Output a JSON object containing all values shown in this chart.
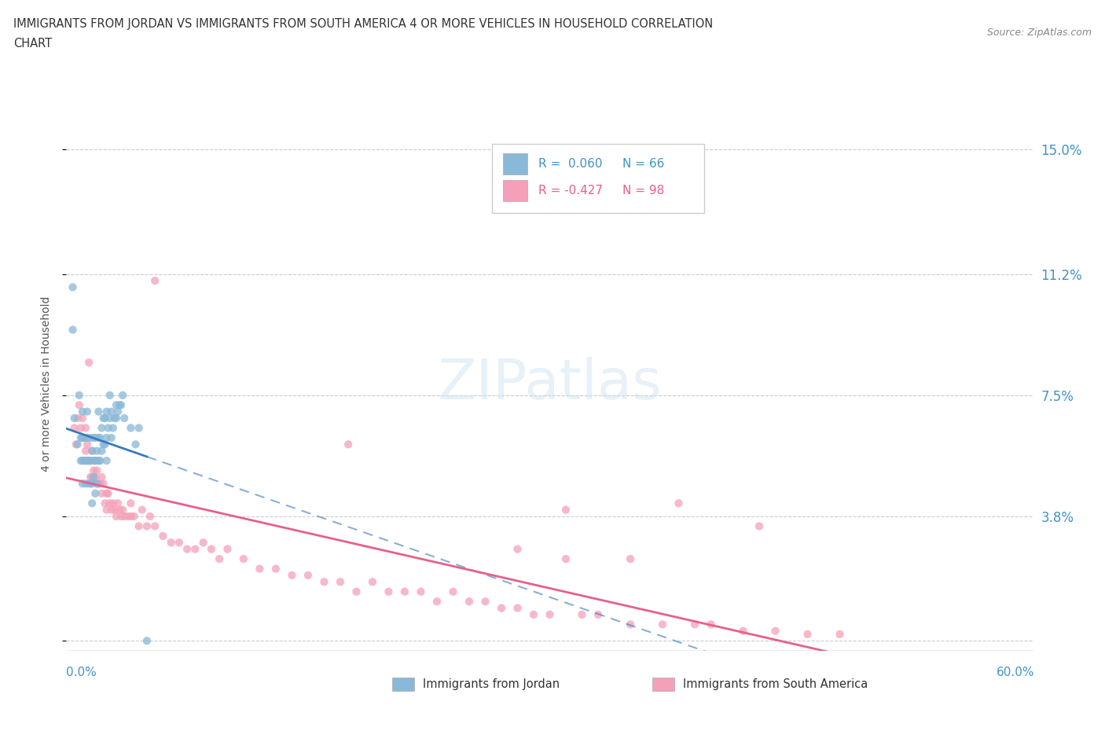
{
  "title_line1": "IMMIGRANTS FROM JORDAN VS IMMIGRANTS FROM SOUTH AMERICA 4 OR MORE VEHICLES IN HOUSEHOLD CORRELATION",
  "title_line2": "CHART",
  "source": "Source: ZipAtlas.com",
  "jordan_R": 0.06,
  "jordan_N": 66,
  "sa_R": -0.427,
  "sa_N": 98,
  "xlim": [
    0.0,
    0.6
  ],
  "ylim": [
    -0.003,
    0.16
  ],
  "xticks": [
    0.0,
    0.1,
    0.2,
    0.3,
    0.4,
    0.5,
    0.6
  ],
  "yticks_right": [
    0.0,
    0.038,
    0.075,
    0.112,
    0.15
  ],
  "ytick_labels_right": [
    "",
    "3.8%",
    "7.5%",
    "11.2%",
    "15.0%"
  ],
  "jordan_color": "#89b8d8",
  "sa_color": "#f5a0b8",
  "jordan_line_color": "#3a7abf",
  "sa_line_color": "#e8608a",
  "watermark_text": "ZIPatlas",
  "jordan_x": [
    0.005,
    0.007,
    0.008,
    0.009,
    0.009,
    0.01,
    0.01,
    0.01,
    0.01,
    0.011,
    0.011,
    0.012,
    0.012,
    0.013,
    0.013,
    0.013,
    0.014,
    0.014,
    0.015,
    0.015,
    0.015,
    0.016,
    0.016,
    0.016,
    0.017,
    0.017,
    0.017,
    0.018,
    0.018,
    0.018,
    0.019,
    0.019,
    0.02,
    0.02,
    0.02,
    0.021,
    0.021,
    0.022,
    0.022,
    0.023,
    0.023,
    0.024,
    0.024,
    0.025,
    0.025,
    0.025,
    0.026,
    0.027,
    0.027,
    0.028,
    0.028,
    0.029,
    0.03,
    0.031,
    0.031,
    0.032,
    0.033,
    0.034,
    0.035,
    0.036,
    0.04,
    0.043,
    0.045,
    0.05,
    0.004,
    0.004
  ],
  "jordan_y": [
    0.068,
    0.06,
    0.075,
    0.055,
    0.062,
    0.048,
    0.055,
    0.062,
    0.07,
    0.055,
    0.062,
    0.048,
    0.055,
    0.055,
    0.062,
    0.07,
    0.048,
    0.055,
    0.048,
    0.055,
    0.062,
    0.042,
    0.048,
    0.058,
    0.05,
    0.055,
    0.062,
    0.045,
    0.055,
    0.062,
    0.048,
    0.058,
    0.055,
    0.062,
    0.07,
    0.055,
    0.062,
    0.058,
    0.065,
    0.06,
    0.068,
    0.06,
    0.068,
    0.055,
    0.062,
    0.07,
    0.065,
    0.068,
    0.075,
    0.062,
    0.07,
    0.065,
    0.068,
    0.068,
    0.072,
    0.07,
    0.072,
    0.072,
    0.075,
    0.068,
    0.065,
    0.06,
    0.065,
    0.0,
    0.095,
    0.108
  ],
  "sa_x": [
    0.005,
    0.006,
    0.007,
    0.008,
    0.009,
    0.01,
    0.01,
    0.011,
    0.012,
    0.012,
    0.013,
    0.013,
    0.014,
    0.015,
    0.015,
    0.016,
    0.016,
    0.017,
    0.018,
    0.018,
    0.019,
    0.019,
    0.02,
    0.02,
    0.021,
    0.022,
    0.022,
    0.023,
    0.024,
    0.025,
    0.025,
    0.026,
    0.027,
    0.028,
    0.029,
    0.03,
    0.031,
    0.032,
    0.033,
    0.034,
    0.035,
    0.036,
    0.038,
    0.04,
    0.04,
    0.042,
    0.045,
    0.047,
    0.05,
    0.052,
    0.055,
    0.06,
    0.065,
    0.07,
    0.075,
    0.08,
    0.085,
    0.09,
    0.095,
    0.1,
    0.11,
    0.12,
    0.13,
    0.14,
    0.15,
    0.16,
    0.17,
    0.18,
    0.19,
    0.2,
    0.21,
    0.22,
    0.23,
    0.24,
    0.25,
    0.26,
    0.27,
    0.28,
    0.29,
    0.3,
    0.32,
    0.33,
    0.35,
    0.37,
    0.39,
    0.4,
    0.42,
    0.44,
    0.46,
    0.48,
    0.28,
    0.175,
    0.38,
    0.31,
    0.055,
    0.31,
    0.43,
    0.35
  ],
  "sa_y": [
    0.065,
    0.06,
    0.068,
    0.072,
    0.065,
    0.062,
    0.068,
    0.055,
    0.058,
    0.065,
    0.055,
    0.06,
    0.085,
    0.05,
    0.055,
    0.05,
    0.058,
    0.052,
    0.05,
    0.055,
    0.048,
    0.052,
    0.048,
    0.055,
    0.048,
    0.045,
    0.05,
    0.048,
    0.042,
    0.045,
    0.04,
    0.045,
    0.042,
    0.04,
    0.042,
    0.04,
    0.038,
    0.042,
    0.04,
    0.038,
    0.04,
    0.038,
    0.038,
    0.038,
    0.042,
    0.038,
    0.035,
    0.04,
    0.035,
    0.038,
    0.035,
    0.032,
    0.03,
    0.03,
    0.028,
    0.028,
    0.03,
    0.028,
    0.025,
    0.028,
    0.025,
    0.022,
    0.022,
    0.02,
    0.02,
    0.018,
    0.018,
    0.015,
    0.018,
    0.015,
    0.015,
    0.015,
    0.012,
    0.015,
    0.012,
    0.012,
    0.01,
    0.01,
    0.008,
    0.008,
    0.008,
    0.008,
    0.005,
    0.005,
    0.005,
    0.005,
    0.003,
    0.003,
    0.002,
    0.002,
    0.028,
    0.06,
    0.042,
    0.025,
    0.11,
    0.04,
    0.035,
    0.025
  ]
}
